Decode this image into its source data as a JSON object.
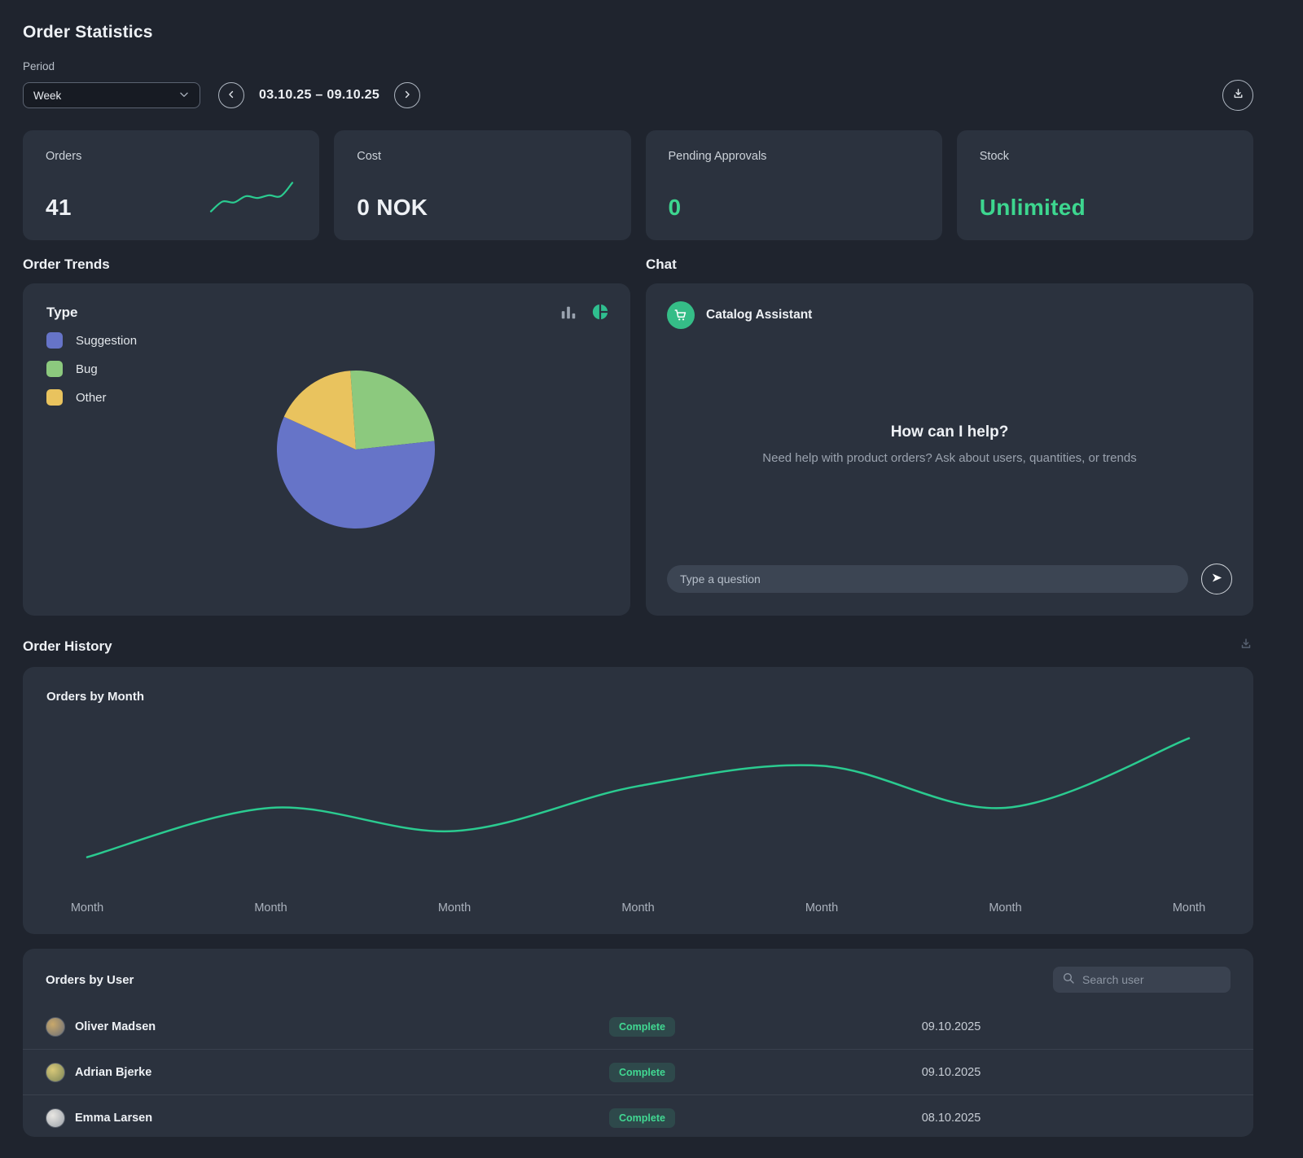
{
  "app": {
    "title": "Order Statistics"
  },
  "period": {
    "label": "Period",
    "selected_option": "Week",
    "date_range": "03.10.25 – 09.10.25"
  },
  "stats": [
    {
      "label": "Orders",
      "value": "41"
    },
    {
      "label": "Cost",
      "value": "0 NOK"
    },
    {
      "label": "Pending Approvals",
      "value": "0"
    },
    {
      "label": "Stock",
      "value": "Unlimited"
    }
  ],
  "section_titles": {
    "order_trends": "Order Trends",
    "chat": "Chat",
    "order_history": "Order History"
  },
  "trends_card": {
    "title": "Type"
  },
  "chat_card": {
    "assistant_name": "Catalog Assistant",
    "greeting": "How can I help?",
    "subtitle": "Need help with product orders? Ask about users, quantities, or trends",
    "input_placeholder": "Type a question"
  },
  "history_card": {
    "title": "Orders by Month"
  },
  "users_card": {
    "title": "Orders by User",
    "search_placeholder": "Search user",
    "rows": [
      {
        "name": "Oliver Madsen",
        "status": "Complete",
        "date": "09.10.2025"
      },
      {
        "name": "Adrian Bjerke",
        "status": "Complete",
        "date": "09.10.2025"
      },
      {
        "name": "Emma Larsen",
        "status": "Complete",
        "date": "08.10.2025"
      }
    ]
  },
  "colors": {
    "accent_green": "#3dd68f",
    "line_green": "#2bcb90",
    "badge_text": "#41d892"
  },
  "chart_data": [
    {
      "type": "pie",
      "title": "Type",
      "labels": [
        "Suggestion",
        "Bug",
        "Other"
      ],
      "values": [
        24,
        10,
        7
      ],
      "colors": [
        "#6674c8",
        "#8cc97e",
        "#e9c35e"
      ],
      "legend_position": "top-left"
    },
    {
      "type": "line",
      "title": "Orders by Month",
      "x": [
        "Month",
        "Month",
        "Month",
        "Month",
        "Month",
        "Month",
        "Month"
      ],
      "values": [
        7,
        41,
        25,
        56,
        70,
        41,
        89
      ],
      "ylim": [
        0,
        100
      ],
      "color": "#2bcb90",
      "grid": false
    },
    {
      "type": "line",
      "title": "Orders sparkline",
      "values": [
        8,
        30,
        28,
        42,
        38,
        44,
        42,
        72
      ],
      "color": "#2bcb90"
    }
  ]
}
